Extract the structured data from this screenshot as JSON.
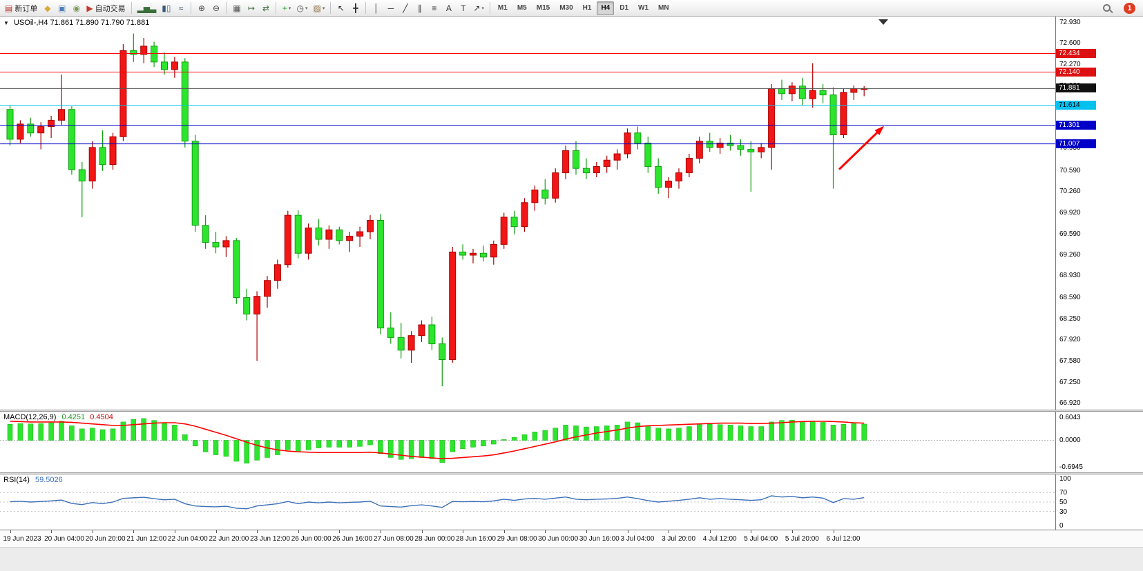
{
  "toolbar": {
    "notification_count": "1",
    "groups": [
      {
        "items": [
          {
            "name": "new-order-button",
            "glyph": "▤",
            "glyph_color": "#b8342c",
            "label": "新订单"
          },
          {
            "name": "market-button",
            "glyph": "◆",
            "glyph_color": "#d9a93a"
          },
          {
            "name": "profile-button",
            "glyph": "▣",
            "glyph_color": "#4a7ebb"
          },
          {
            "name": "web-button",
            "glyph": "◉",
            "glyph_color": "#7a9a5a"
          },
          {
            "name": "autotrading-button",
            "glyph": "▶",
            "glyph_color": "#c43a2e",
            "label": "自动交易"
          }
        ]
      },
      {
        "items": [
          {
            "name": "bar-chart-button",
            "glyph": "▂▅▃",
            "glyph_color": "#3a6e3a"
          },
          {
            "name": "candlestick-chart-button",
            "glyph": "▮▯",
            "glyph_color": "#3a5a7a"
          },
          {
            "name": "line-chart-button",
            "glyph": "≈",
            "glyph_color": "#3a5a7a"
          }
        ]
      },
      {
        "items": [
          {
            "name": "zoom-in-button",
            "glyph": "⊕",
            "glyph_color": "#444444"
          },
          {
            "name": "zoom-out-button",
            "glyph": "⊖",
            "glyph_color": "#444444"
          }
        ]
      },
      {
        "items": [
          {
            "name": "tile-windows-button",
            "glyph": "▦",
            "glyph_color": "#555555"
          },
          {
            "name": "auto-scroll-button",
            "glyph": "↦",
            "glyph_color": "#3a6e3a"
          },
          {
            "name": "chart-shift-button",
            "glyph": "⇄",
            "glyph_color": "#3a6e3a"
          }
        ]
      },
      {
        "items": [
          {
            "name": "indicators-button",
            "glyph": "+",
            "glyph_color": "#1c9a1c",
            "dropdown": true
          },
          {
            "name": "periods-button",
            "glyph": "◷",
            "glyph_color": "#555555",
            "dropdown": true
          },
          {
            "name": "templates-button",
            "glyph": "▨",
            "glyph_color": "#8a6a3a",
            "dropdown": true
          }
        ]
      },
      {
        "items": [
          {
            "name": "cursor-button",
            "glyph": "↖",
            "glyph_color": "#333333"
          },
          {
            "name": "crosshair-button",
            "glyph": "╋",
            "glyph_color": "#333333"
          }
        ]
      },
      {
        "items": [
          {
            "name": "vertical-line-button",
            "glyph": "│",
            "glyph_color": "#333333"
          },
          {
            "name": "horizontal-line-button",
            "glyph": "─",
            "glyph_color": "#333333"
          },
          {
            "name": "trendline-button",
            "glyph": "╱",
            "glyph_color": "#333333"
          },
          {
            "name": "channel-button",
            "glyph": "∥",
            "glyph_color": "#333333"
          },
          {
            "name": "fibonacci-button",
            "glyph": "≡",
            "glyph_color": "#333333"
          },
          {
            "name": "text-button",
            "glyph": "A",
            "glyph_color": "#333333"
          },
          {
            "name": "label-button",
            "glyph": "T",
            "glyph_color": "#333333"
          },
          {
            "name": "shapes-button",
            "glyph": "↗",
            "glyph_color": "#333333",
            "dropdown": true
          }
        ]
      }
    ],
    "timeframes": [
      {
        "label": "M1"
      },
      {
        "label": "M5"
      },
      {
        "label": "M15"
      },
      {
        "label": "M30"
      },
      {
        "label": "H1"
      },
      {
        "label": "H4",
        "active": true
      },
      {
        "label": "D1"
      },
      {
        "label": "W1"
      },
      {
        "label": "MN"
      }
    ]
  },
  "chart": {
    "symbol_text": "USOil-,H4",
    "ohlc_text": "71.861 71.890 71.790 71.881",
    "expand_icon": "▼",
    "up_color": "#f21616",
    "up_stroke": "#aa0000",
    "down_color": "#2ee52e",
    "down_stroke": "#0f9f0f",
    "y_axis_labels": [
      "72.930",
      "72.600",
      "72.270",
      "71.930",
      "71.610",
      "71.280",
      "70.950",
      "70.590",
      "70.260",
      "69.920",
      "69.590",
      "69.260",
      "68.930",
      "68.590",
      "68.250",
      "67.920",
      "67.580",
      "67.250",
      "66.920"
    ]
  },
  "macd": {
    "name": "MACD(12,26,9)",
    "value_main": "0.4251",
    "value_signal": "0.4504",
    "hist_color": "#2ee52e",
    "signal_color": "#ff0000",
    "axis_labels": [
      {
        "text": "0.6043",
        "value": 0.6043
      },
      {
        "text": "0.0000",
        "value": 0
      },
      {
        "text": "-0.6945",
        "value": -0.6945
      }
    ]
  },
  "rsi": {
    "name": "RSI(14)",
    "value": "59.5026",
    "line_color": "#3c6fb8",
    "axis_labels": [
      {
        "text": "100",
        "value": 100
      },
      {
        "text": "70",
        "value": 70
      },
      {
        "text": "50",
        "value": 50
      },
      {
        "text": "30",
        "value": 30
      },
      {
        "text": "0",
        "value": 0
      }
    ]
  },
  "chart_data": {
    "type": "candlestick",
    "symbol": "USOil-",
    "timeframe": "H4",
    "current_ohlc": {
      "open": 71.861,
      "high": 71.89,
      "low": 71.79,
      "close": 71.881
    },
    "y_range": [
      66.92,
      72.93
    ],
    "x_labels": [
      "19 Jun 2023",
      "20 Jun 04:00",
      "20 Jun 20:00",
      "21 Jun 12:00",
      "22 Jun 04:00",
      "22 Jun 20:00",
      "23 Jun 12:00",
      "26 Jun 00:00",
      "26 Jun 16:00",
      "27 Jun 08:00",
      "28 Jun 00:00",
      "28 Jun 16:00",
      "29 Jun 08:00",
      "30 Jun 00:00",
      "30 Jun 16:00",
      "3 Jul 04:00",
      "3 Jul 20:00",
      "4 Jul 12:00",
      "5 Jul 04:00",
      "5 Jul 20:00",
      "6 Jul 12:00"
    ],
    "candles": {
      "open": [
        71.55,
        71.08,
        71.32,
        71.18,
        71.28,
        71.38,
        71.55,
        70.6,
        70.42,
        70.95,
        70.68,
        71.12,
        72.48,
        72.42,
        72.55,
        72.3,
        72.18,
        72.3,
        71.05,
        69.72,
        69.45,
        69.38,
        69.48,
        68.58,
        68.32,
        68.6,
        68.85,
        69.1,
        69.88,
        69.28,
        69.68,
        69.5,
        69.65,
        69.48,
        69.55,
        69.62,
        69.8,
        68.1,
        67.95,
        67.75,
        67.98,
        68.15,
        67.85,
        67.6,
        69.3,
        69.25,
        69.28,
        69.22,
        69.42,
        69.85,
        69.7,
        70.08,
        70.28,
        70.15,
        70.55,
        70.9,
        70.62,
        70.55,
        70.65,
        70.75,
        70.85,
        71.18,
        71.02,
        70.65,
        70.32,
        70.42,
        70.55,
        70.78,
        71.05,
        70.95,
        71.02,
        70.98,
        70.92,
        70.88,
        70.95,
        71.88,
        71.8,
        71.92,
        71.72,
        71.85,
        71.78,
        71.15,
        71.82,
        71.88
      ],
      "high": [
        71.62,
        71.38,
        71.42,
        71.35,
        71.45,
        72.1,
        71.6,
        70.72,
        71.05,
        71.22,
        71.18,
        72.58,
        72.75,
        72.68,
        72.62,
        72.45,
        72.38,
        72.36,
        71.15,
        69.88,
        69.62,
        69.55,
        69.52,
        68.72,
        68.68,
        68.92,
        69.18,
        69.95,
        69.96,
        69.75,
        69.82,
        69.72,
        69.7,
        69.62,
        69.7,
        69.88,
        69.9,
        68.35,
        68.18,
        68.05,
        68.22,
        68.28,
        67.95,
        69.38,
        69.42,
        69.35,
        69.4,
        69.48,
        69.92,
        69.95,
        70.15,
        70.35,
        70.45,
        70.62,
        70.98,
        71.05,
        70.78,
        70.72,
        70.82,
        70.92,
        71.25,
        71.28,
        71.12,
        70.78,
        70.48,
        70.62,
        70.85,
        71.12,
        71.18,
        71.1,
        71.15,
        71.08,
        71.05,
        71.02,
        71.95,
        72.02,
        71.98,
        72.05,
        72.28,
        71.95,
        71.9,
        71.88,
        71.93,
        71.92
      ],
      "low": [
        70.98,
        71.02,
        71.12,
        70.92,
        71.1,
        71.3,
        70.52,
        69.85,
        70.3,
        70.58,
        70.6,
        71.05,
        72.3,
        72.28,
        72.22,
        72.1,
        72.05,
        70.95,
        69.62,
        69.35,
        69.28,
        69.22,
        68.48,
        68.22,
        67.58,
        68.42,
        68.72,
        69.05,
        69.2,
        69.18,
        69.4,
        69.35,
        69.42,
        69.3,
        69.38,
        69.5,
        68.0,
        67.85,
        67.62,
        67.55,
        67.88,
        67.75,
        67.18,
        67.55,
        69.18,
        69.12,
        69.15,
        69.1,
        69.35,
        69.58,
        69.62,
        69.95,
        70.05,
        70.08,
        70.45,
        70.52,
        70.45,
        70.48,
        70.55,
        70.6,
        70.78,
        70.92,
        70.55,
        70.22,
        70.15,
        70.3,
        70.48,
        70.7,
        70.88,
        70.85,
        70.9,
        70.82,
        70.25,
        70.78,
        70.6,
        71.7,
        71.68,
        71.62,
        71.58,
        71.65,
        70.3,
        71.1,
        71.7,
        71.76
      ],
      "close": [
        71.08,
        71.32,
        71.18,
        71.28,
        71.38,
        71.55,
        70.6,
        70.42,
        70.95,
        70.68,
        71.12,
        72.48,
        72.42,
        72.55,
        72.3,
        72.18,
        72.3,
        71.05,
        69.72,
        69.45,
        69.38,
        69.48,
        68.58,
        68.32,
        68.6,
        68.85,
        69.1,
        69.88,
        69.28,
        69.68,
        69.5,
        69.65,
        69.48,
        69.55,
        69.62,
        69.8,
        68.1,
        67.95,
        67.75,
        67.98,
        68.15,
        67.85,
        67.6,
        69.3,
        69.25,
        69.28,
        69.22,
        69.42,
        69.85,
        69.7,
        70.08,
        70.28,
        70.15,
        70.55,
        70.9,
        70.62,
        70.55,
        70.65,
        70.75,
        70.85,
        71.18,
        71.02,
        70.65,
        70.32,
        70.42,
        70.55,
        70.78,
        71.05,
        70.95,
        71.02,
        70.98,
        70.92,
        70.88,
        70.95,
        71.88,
        71.8,
        71.92,
        71.72,
        71.85,
        71.78,
        71.15,
        71.82,
        71.88,
        71.881
      ]
    },
    "levels": [
      {
        "value": 72.434,
        "label": "72.434",
        "type": "resistance",
        "line": "#ff0000",
        "badge": "#dd1111",
        "text": "#ffffff"
      },
      {
        "value": 72.14,
        "label": "72.140",
        "type": "resistance",
        "line": "#ff0000",
        "badge": "#dd1111",
        "text": "#ffffff"
      },
      {
        "value": 71.881,
        "label": "71.881",
        "type": "current-price",
        "line": "#555555",
        "badge": "#111111",
        "text": "#ffffff"
      },
      {
        "value": 71.614,
        "label": "71.614",
        "type": "level",
        "line": "#00c0ef",
        "badge": "#00c0ef",
        "text": "#000000"
      },
      {
        "value": 71.301,
        "label": "71.301",
        "type": "support",
        "line": "#0000c8",
        "badge": "#0000c8",
        "text": "#ffffff"
      },
      {
        "value": 71.007,
        "label": "71.007",
        "type": "support",
        "line": "#0000c8",
        "badge": "#0000c8",
        "text": "#ffffff"
      }
    ],
    "annotations": [
      {
        "type": "arrow",
        "color": "#ff0000",
        "points_to_price": 71.301,
        "direction": "up-right"
      }
    ],
    "indicators": [
      {
        "type": "MACD",
        "params": [
          12,
          26,
          9
        ],
        "range": [
          -0.6945,
          0.6043
        ],
        "histogram": [
          0.42,
          0.44,
          0.43,
          0.44,
          0.46,
          0.5,
          0.38,
          0.3,
          0.32,
          0.28,
          0.3,
          0.48,
          0.55,
          0.57,
          0.52,
          0.45,
          0.4,
          0.15,
          -0.15,
          -0.3,
          -0.38,
          -0.42,
          -0.55,
          -0.6,
          -0.52,
          -0.45,
          -0.38,
          -0.25,
          -0.3,
          -0.25,
          -0.2,
          -0.18,
          -0.18,
          -0.18,
          -0.16,
          -0.12,
          -0.35,
          -0.45,
          -0.5,
          -0.48,
          -0.45,
          -0.48,
          -0.58,
          -0.3,
          -0.22,
          -0.18,
          -0.15,
          -0.1,
          0.02,
          0.08,
          0.15,
          0.22,
          0.26,
          0.32,
          0.4,
          0.38,
          0.35,
          0.36,
          0.38,
          0.4,
          0.48,
          0.46,
          0.38,
          0.32,
          0.3,
          0.32,
          0.36,
          0.42,
          0.42,
          0.41,
          0.4,
          0.38,
          0.36,
          0.36,
          0.48,
          0.52,
          0.53,
          0.49,
          0.5,
          0.47,
          0.4,
          0.42,
          0.44,
          0.4251
        ],
        "signal": [
          0.5,
          0.49,
          0.48,
          0.48,
          0.48,
          0.48,
          0.47,
          0.45,
          0.43,
          0.41,
          0.39,
          0.39,
          0.41,
          0.43,
          0.45,
          0.46,
          0.46,
          0.43,
          0.37,
          0.29,
          0.21,
          0.13,
          0.04,
          -0.05,
          -0.13,
          -0.2,
          -0.25,
          -0.28,
          -0.3,
          -0.31,
          -0.32,
          -0.32,
          -0.32,
          -0.32,
          -0.32,
          -0.31,
          -0.33,
          -0.36,
          -0.39,
          -0.42,
          -0.44,
          -0.46,
          -0.48,
          -0.47,
          -0.45,
          -0.43,
          -0.41,
          -0.38,
          -0.33,
          -0.28,
          -0.22,
          -0.16,
          -0.1,
          -0.04,
          0.03,
          0.09,
          0.14,
          0.19,
          0.23,
          0.27,
          0.32,
          0.36,
          0.38,
          0.39,
          0.4,
          0.41,
          0.42,
          0.43,
          0.44,
          0.45,
          0.45,
          0.45,
          0.44,
          0.44,
          0.45,
          0.46,
          0.48,
          0.49,
          0.5,
          0.5,
          0.49,
          0.48,
          0.46,
          0.4504
        ]
      },
      {
        "type": "RSI",
        "params": [
          14
        ],
        "range": [
          0,
          100
        ],
        "levels": [
          70,
          50,
          30
        ],
        "values": [
          50.6,
          51.8,
          50.0,
          51.2,
          52.4,
          54.2,
          47.0,
          44.6,
          48.8,
          46.4,
          50.0,
          57.8,
          59.0,
          60.2,
          57.2,
          54.8,
          56.0,
          46.4,
          41.6,
          40.4,
          39.8,
          41.0,
          36.8,
          35.6,
          41.6,
          44.0,
          46.4,
          51.2,
          46.4,
          50.0,
          48.2,
          50.0,
          48.2,
          49.4,
          50.0,
          51.8,
          41.6,
          40.4,
          39.2,
          42.2,
          44.0,
          41.6,
          38.6,
          51.2,
          50.6,
          51.2,
          50.6,
          52.4,
          56.0,
          53.6,
          56.6,
          57.8,
          56.0,
          58.4,
          60.8,
          56.0,
          54.8,
          56.0,
          56.6,
          57.8,
          60.8,
          57.2,
          53.0,
          50.0,
          51.8,
          53.6,
          56.0,
          59.0,
          56.0,
          57.2,
          56.0,
          54.8,
          53.6,
          54.8,
          63.2,
          60.8,
          62.0,
          59.0,
          60.8,
          58.4,
          48.8,
          57.2,
          56.0,
          59.5026
        ]
      }
    ]
  }
}
